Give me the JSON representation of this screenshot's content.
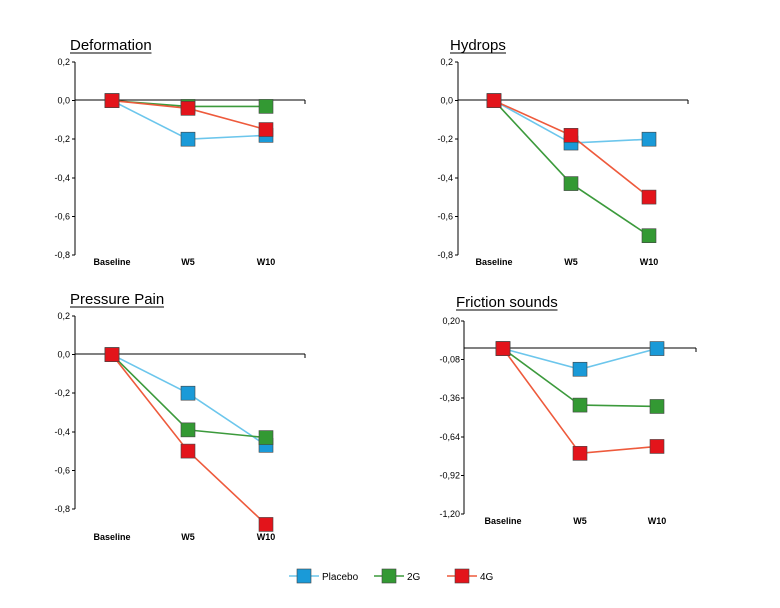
{
  "colors": {
    "Placebo": "#1a9ad8",
    "2G": "#339933",
    "4G": "#e3141b"
  },
  "line_colors": {
    "Placebo": "#6cc6ec",
    "2G": "#3c9a3c",
    "4G": "#ee5a3c"
  },
  "legend": {
    "items": [
      {
        "name": "Placebo",
        "color": "#1a9ad8",
        "line": "#6cc6ec"
      },
      {
        "name": "2G",
        "color": "#339933",
        "line": "#3c9a3c"
      },
      {
        "name": "4G",
        "color": "#e3141b",
        "line": "#ee5a3c"
      }
    ]
  },
  "chart_data": [
    {
      "type": "line",
      "title": "Deformation",
      "categories": [
        "Baseline",
        "W5",
        "W10"
      ],
      "ylim": [
        -0.8,
        0.2
      ],
      "yticks": [
        "0,2",
        "0,0",
        "-0,2",
        "-0,4",
        "-0,6",
        "-0,8"
      ],
      "series": [
        {
          "name": "Placebo",
          "values": [
            0.0,
            -0.2,
            -0.18
          ]
        },
        {
          "name": "2G",
          "values": [
            0.0,
            -0.03,
            -0.03
          ]
        },
        {
          "name": "4G",
          "values": [
            0.0,
            -0.04,
            -0.15
          ]
        }
      ],
      "legend_position": "bottom"
    },
    {
      "type": "line",
      "title": "Hydrops",
      "categories": [
        "Baseline",
        "W5",
        "W10"
      ],
      "ylim": [
        -0.8,
        0.2
      ],
      "yticks": [
        "0,2",
        "0,0",
        "-0,2",
        "-0,4",
        "-0,6",
        "-0,8"
      ],
      "series": [
        {
          "name": "Placebo",
          "values": [
            0.0,
            -0.22,
            -0.2
          ]
        },
        {
          "name": "2G",
          "values": [
            0.0,
            -0.43,
            -0.7
          ]
        },
        {
          "name": "4G",
          "values": [
            0.0,
            -0.18,
            -0.5
          ]
        }
      ],
      "legend_position": "bottom"
    },
    {
      "type": "line",
      "title": "Pressure Pain",
      "categories": [
        "Baseline",
        "W5",
        "W10"
      ],
      "ylim": [
        -0.8,
        0.2
      ],
      "yticks": [
        "0,2",
        "0,0",
        "-0,2",
        "-0,4",
        "-0,6",
        "-0,8"
      ],
      "series": [
        {
          "name": "Placebo",
          "values": [
            0.0,
            -0.2,
            -0.47
          ]
        },
        {
          "name": "2G",
          "values": [
            0.0,
            -0.39,
            -0.43
          ]
        },
        {
          "name": "4G",
          "values": [
            0.0,
            -0.5,
            -0.88
          ]
        }
      ],
      "legend_position": "bottom"
    },
    {
      "type": "line",
      "title": "Friction sounds",
      "categories": [
        "Baseline",
        "W5",
        "W10"
      ],
      "ylim": [
        -1.2,
        0.2
      ],
      "yticks": [
        "0,20",
        "-0,08",
        "-0,36",
        "-0,64",
        "-0,92",
        "-1,20"
      ],
      "series": [
        {
          "name": "Placebo",
          "values": [
            0.0,
            -0.15,
            0.0
          ]
        },
        {
          "name": "2G",
          "values": [
            0.0,
            -0.41,
            -0.42
          ]
        },
        {
          "name": "4G",
          "values": [
            0.0,
            -0.76,
            -0.71
          ]
        }
      ],
      "legend_position": "bottom"
    }
  ]
}
